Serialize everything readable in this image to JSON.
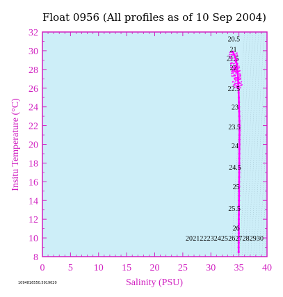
{
  "chart_data": {
    "type": "scatter",
    "title": "Float 0956  (All profiles as of 10 Sep 2004)",
    "xlabel": "Salinity (PSU)",
    "ylabel": "Insitu Temperature (°C)",
    "xlim": [
      0,
      40
    ],
    "ylim": [
      8,
      32
    ],
    "x_ticks": [
      0,
      5,
      10,
      15,
      20,
      25,
      30,
      35,
      40
    ],
    "y_ticks": [
      8,
      10,
      12,
      14,
      16,
      18,
      20,
      22,
      24,
      26,
      28,
      30,
      32
    ],
    "grid": false,
    "background_color": "#cdeef8",
    "axis_color": "#d020c0",
    "point_color": "#ff00ff",
    "series": [
      {
        "points": [
          [
            34.95,
            8.5
          ],
          [
            34.95,
            9.0
          ],
          [
            34.96,
            9.5
          ],
          [
            34.96,
            10.0
          ],
          [
            34.97,
            10.5
          ],
          [
            34.97,
            11.0
          ],
          [
            34.98,
            11.5
          ],
          [
            34.98,
            12.0
          ],
          [
            34.99,
            12.5
          ],
          [
            35.0,
            13.0
          ],
          [
            35.0,
            13.5
          ],
          [
            35.01,
            14.0
          ],
          [
            35.02,
            14.5
          ],
          [
            35.02,
            15.0
          ],
          [
            35.03,
            15.5
          ],
          [
            35.03,
            16.0
          ],
          [
            35.04,
            16.5
          ],
          [
            35.05,
            17.0
          ],
          [
            35.05,
            17.5
          ],
          [
            35.06,
            18.0
          ],
          [
            35.06,
            18.5
          ],
          [
            35.07,
            19.0
          ],
          [
            35.07,
            19.5
          ],
          [
            35.08,
            20.0
          ],
          [
            35.08,
            20.5
          ],
          [
            35.09,
            21.0
          ],
          [
            35.1,
            21.5
          ],
          [
            35.1,
            22.0
          ],
          [
            35.08,
            22.5
          ],
          [
            35.06,
            23.0
          ],
          [
            35.04,
            23.5
          ],
          [
            35.02,
            24.0
          ],
          [
            35.0,
            24.5
          ],
          [
            34.98,
            25.0
          ],
          [
            34.95,
            25.5
          ],
          [
            34.92,
            26.0
          ],
          [
            34.88,
            26.5
          ],
          [
            34.85,
            27.0
          ],
          [
            34.8,
            27.5
          ],
          [
            34.7,
            28.0
          ],
          [
            34.6,
            28.5
          ],
          [
            34.5,
            29.0
          ],
          [
            34.3,
            29.3
          ],
          [
            34.1,
            29.6
          ],
          [
            33.9,
            29.9
          ]
        ]
      }
    ],
    "density_labels_vertical": [
      {
        "text": "20.5",
        "s": 34.1,
        "t": 31.0
      },
      {
        "text": "21",
        "s": 34.0,
        "t": 29.9
      },
      {
        "text": "21.5",
        "s": 33.9,
        "t": 28.9
      },
      {
        "text": "22",
        "s": 34.0,
        "t": 27.9
      },
      {
        "text": "22.5",
        "s": 34.1,
        "t": 25.7
      },
      {
        "text": "23",
        "s": 34.3,
        "t": 23.7
      },
      {
        "text": "23.5",
        "s": 34.2,
        "t": 21.6
      },
      {
        "text": "24",
        "s": 34.3,
        "t": 19.6
      },
      {
        "text": "24.5",
        "s": 34.3,
        "t": 17.3
      },
      {
        "text": "25",
        "s": 34.5,
        "t": 15.2
      },
      {
        "text": "25.5",
        "s": 34.2,
        "t": 12.9
      },
      {
        "text": "26",
        "s": 34.5,
        "t": 10.8
      }
    ],
    "density_labels_bottom": [
      "20",
      "21",
      "22",
      "23",
      "24",
      "25",
      "26",
      "27",
      "28",
      "29",
      "30"
    ],
    "footnote": "1094816550.5919020"
  }
}
